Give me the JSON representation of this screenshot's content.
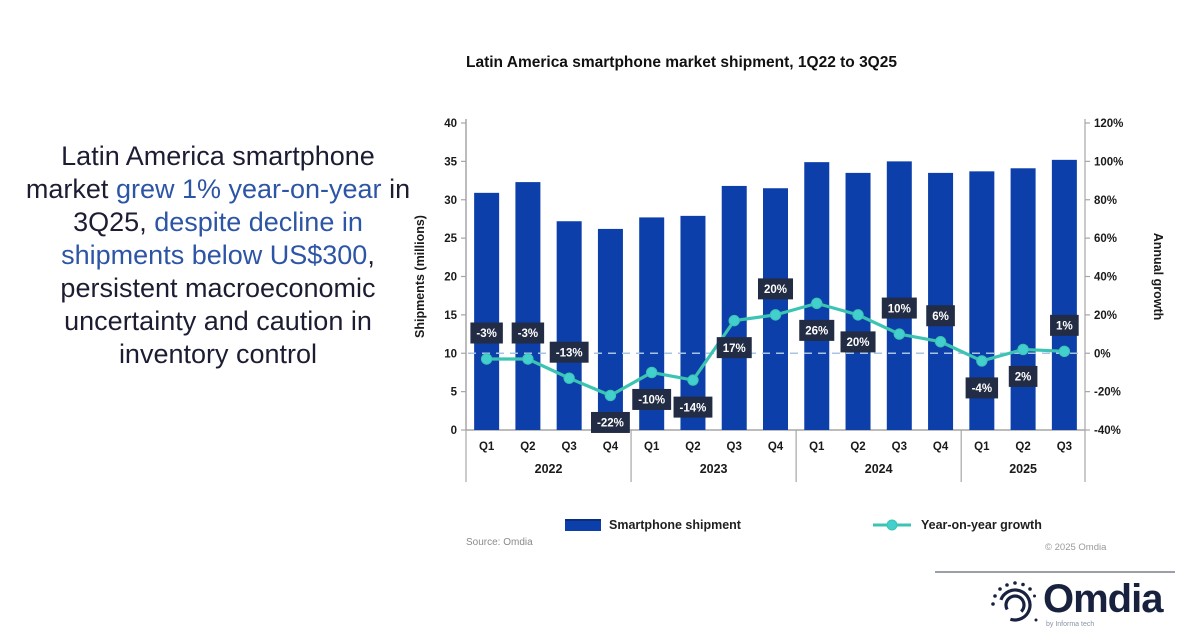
{
  "headline": {
    "segments": [
      {
        "text": "Latin America smartphone market ",
        "tone": "dark"
      },
      {
        "text": "grew 1% year-on-year",
        "tone": "blue"
      },
      {
        "text": " in 3Q25, ",
        "tone": "dark"
      },
      {
        "text": "despite decline in shipments below US$300",
        "tone": "blue"
      },
      {
        "text": ", persistent macroeconomic uncertainty and caution in inventory control",
        "tone": "dark"
      }
    ],
    "dark_color": "#1c1d33",
    "blue_color": "#2d55a5"
  },
  "chart": {
    "title": "Latin America smartphone market shipment, 1Q22 to 3Q25"
  },
  "chart_data": {
    "type": "bar",
    "categories": [
      "Q1",
      "Q2",
      "Q3",
      "Q4",
      "Q1",
      "Q2",
      "Q3",
      "Q4",
      "Q1",
      "Q2",
      "Q3",
      "Q4",
      "Q1",
      "Q2",
      "Q3"
    ],
    "year_groups": [
      {
        "label": "2022",
        "count": 4
      },
      {
        "label": "2023",
        "count": 4
      },
      {
        "label": "2024",
        "count": 4
      },
      {
        "label": "2025",
        "count": 3
      }
    ],
    "series": [
      {
        "name": "Smartphone shipment",
        "type": "bar",
        "axis": "left",
        "color": "#0d3fab",
        "values": [
          30.9,
          32.3,
          27.2,
          26.2,
          27.7,
          27.9,
          31.8,
          31.5,
          34.9,
          33.5,
          35.0,
          33.5,
          33.7,
          34.1,
          35.2
        ]
      },
      {
        "name": "Year-on-year growth",
        "type": "line",
        "axis": "right",
        "color": "#3bc4b2",
        "marker_color": "#43cfcd",
        "values": [
          -3,
          -3,
          -13,
          -22,
          -10,
          -14,
          17,
          20,
          26,
          20,
          10,
          6,
          -4,
          2,
          1
        ],
        "labels": [
          "-3%",
          "-3%",
          "-13%",
          "-22%",
          "-10%",
          "-14%",
          "17%",
          "20%",
          "26%",
          "20%",
          "10%",
          "6%",
          "-4%",
          "2%",
          "1%"
        ],
        "label_side": [
          "above",
          "above",
          "above",
          "below",
          "below",
          "below",
          "below",
          "above",
          "below",
          "below",
          "above",
          "above",
          "below",
          "below",
          "above"
        ]
      }
    ],
    "left_axis": {
      "title": "Shipments (millions)",
      "min": 0,
      "max": 40,
      "step": 5
    },
    "right_axis": {
      "title": "Annual growth",
      "min": -40,
      "max": 120,
      "step": 20,
      "suffix": "%"
    },
    "reference_line": {
      "value": 0,
      "axis": "right",
      "style": "dashed",
      "color": "#a8c4e4"
    },
    "label_box": {
      "bg": "#222c44",
      "text_color": "#ffffff"
    },
    "axis_color": "#a6a6a6",
    "tick_text_color": "#1a1a1a",
    "grid": "off",
    "legend_position": "bottom"
  },
  "legend": [
    {
      "label": "Smartphone shipment",
      "swatch": "bar",
      "color": "#0d3fab"
    },
    {
      "label": "Year-on-year growth",
      "swatch": "line",
      "color": "#3bc4b2"
    }
  ],
  "source": "Source: Omdia",
  "copyright": "© 2025 Omdia",
  "logo": {
    "name": "Omdia",
    "tagline": "by Informa tech"
  }
}
